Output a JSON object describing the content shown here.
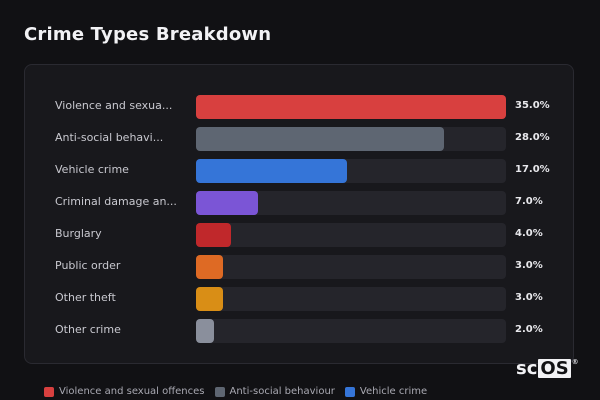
{
  "chart_data": {
    "type": "bar",
    "orientation": "horizontal",
    "title": "Crime Types Breakdown",
    "categories": [
      "Violence and sexua...",
      "Anti-social behavi...",
      "Vehicle crime",
      "Criminal damage an...",
      "Burglary",
      "Public order",
      "Other theft",
      "Other crime"
    ],
    "values": [
      35.0,
      28.0,
      17.0,
      7.0,
      4.0,
      3.0,
      3.0,
      2.0
    ],
    "value_labels": [
      "35.0%",
      "28.0%",
      "17.0%",
      "7.0%",
      "4.0%",
      "3.0%",
      "3.0%",
      "2.0%"
    ],
    "colors": [
      "#d8403f",
      "#5e6672",
      "#3575d8",
      "#7b55d6",
      "#c0282b",
      "#de6a24",
      "#d98e16",
      "#8a8f9c"
    ],
    "xlim": [
      0,
      35
    ],
    "grid": false,
    "legend": {
      "placement": "bottom",
      "entries": [
        {
          "label": "Violence and sexual offences",
          "color": "#d8403f"
        },
        {
          "label": "Anti-social behaviour",
          "color": "#5e6672"
        },
        {
          "label": "Vehicle crime",
          "color": "#3575d8"
        }
      ]
    }
  },
  "logo": {
    "prefix": "sc",
    "boxed": "OS",
    "mark": "®"
  }
}
